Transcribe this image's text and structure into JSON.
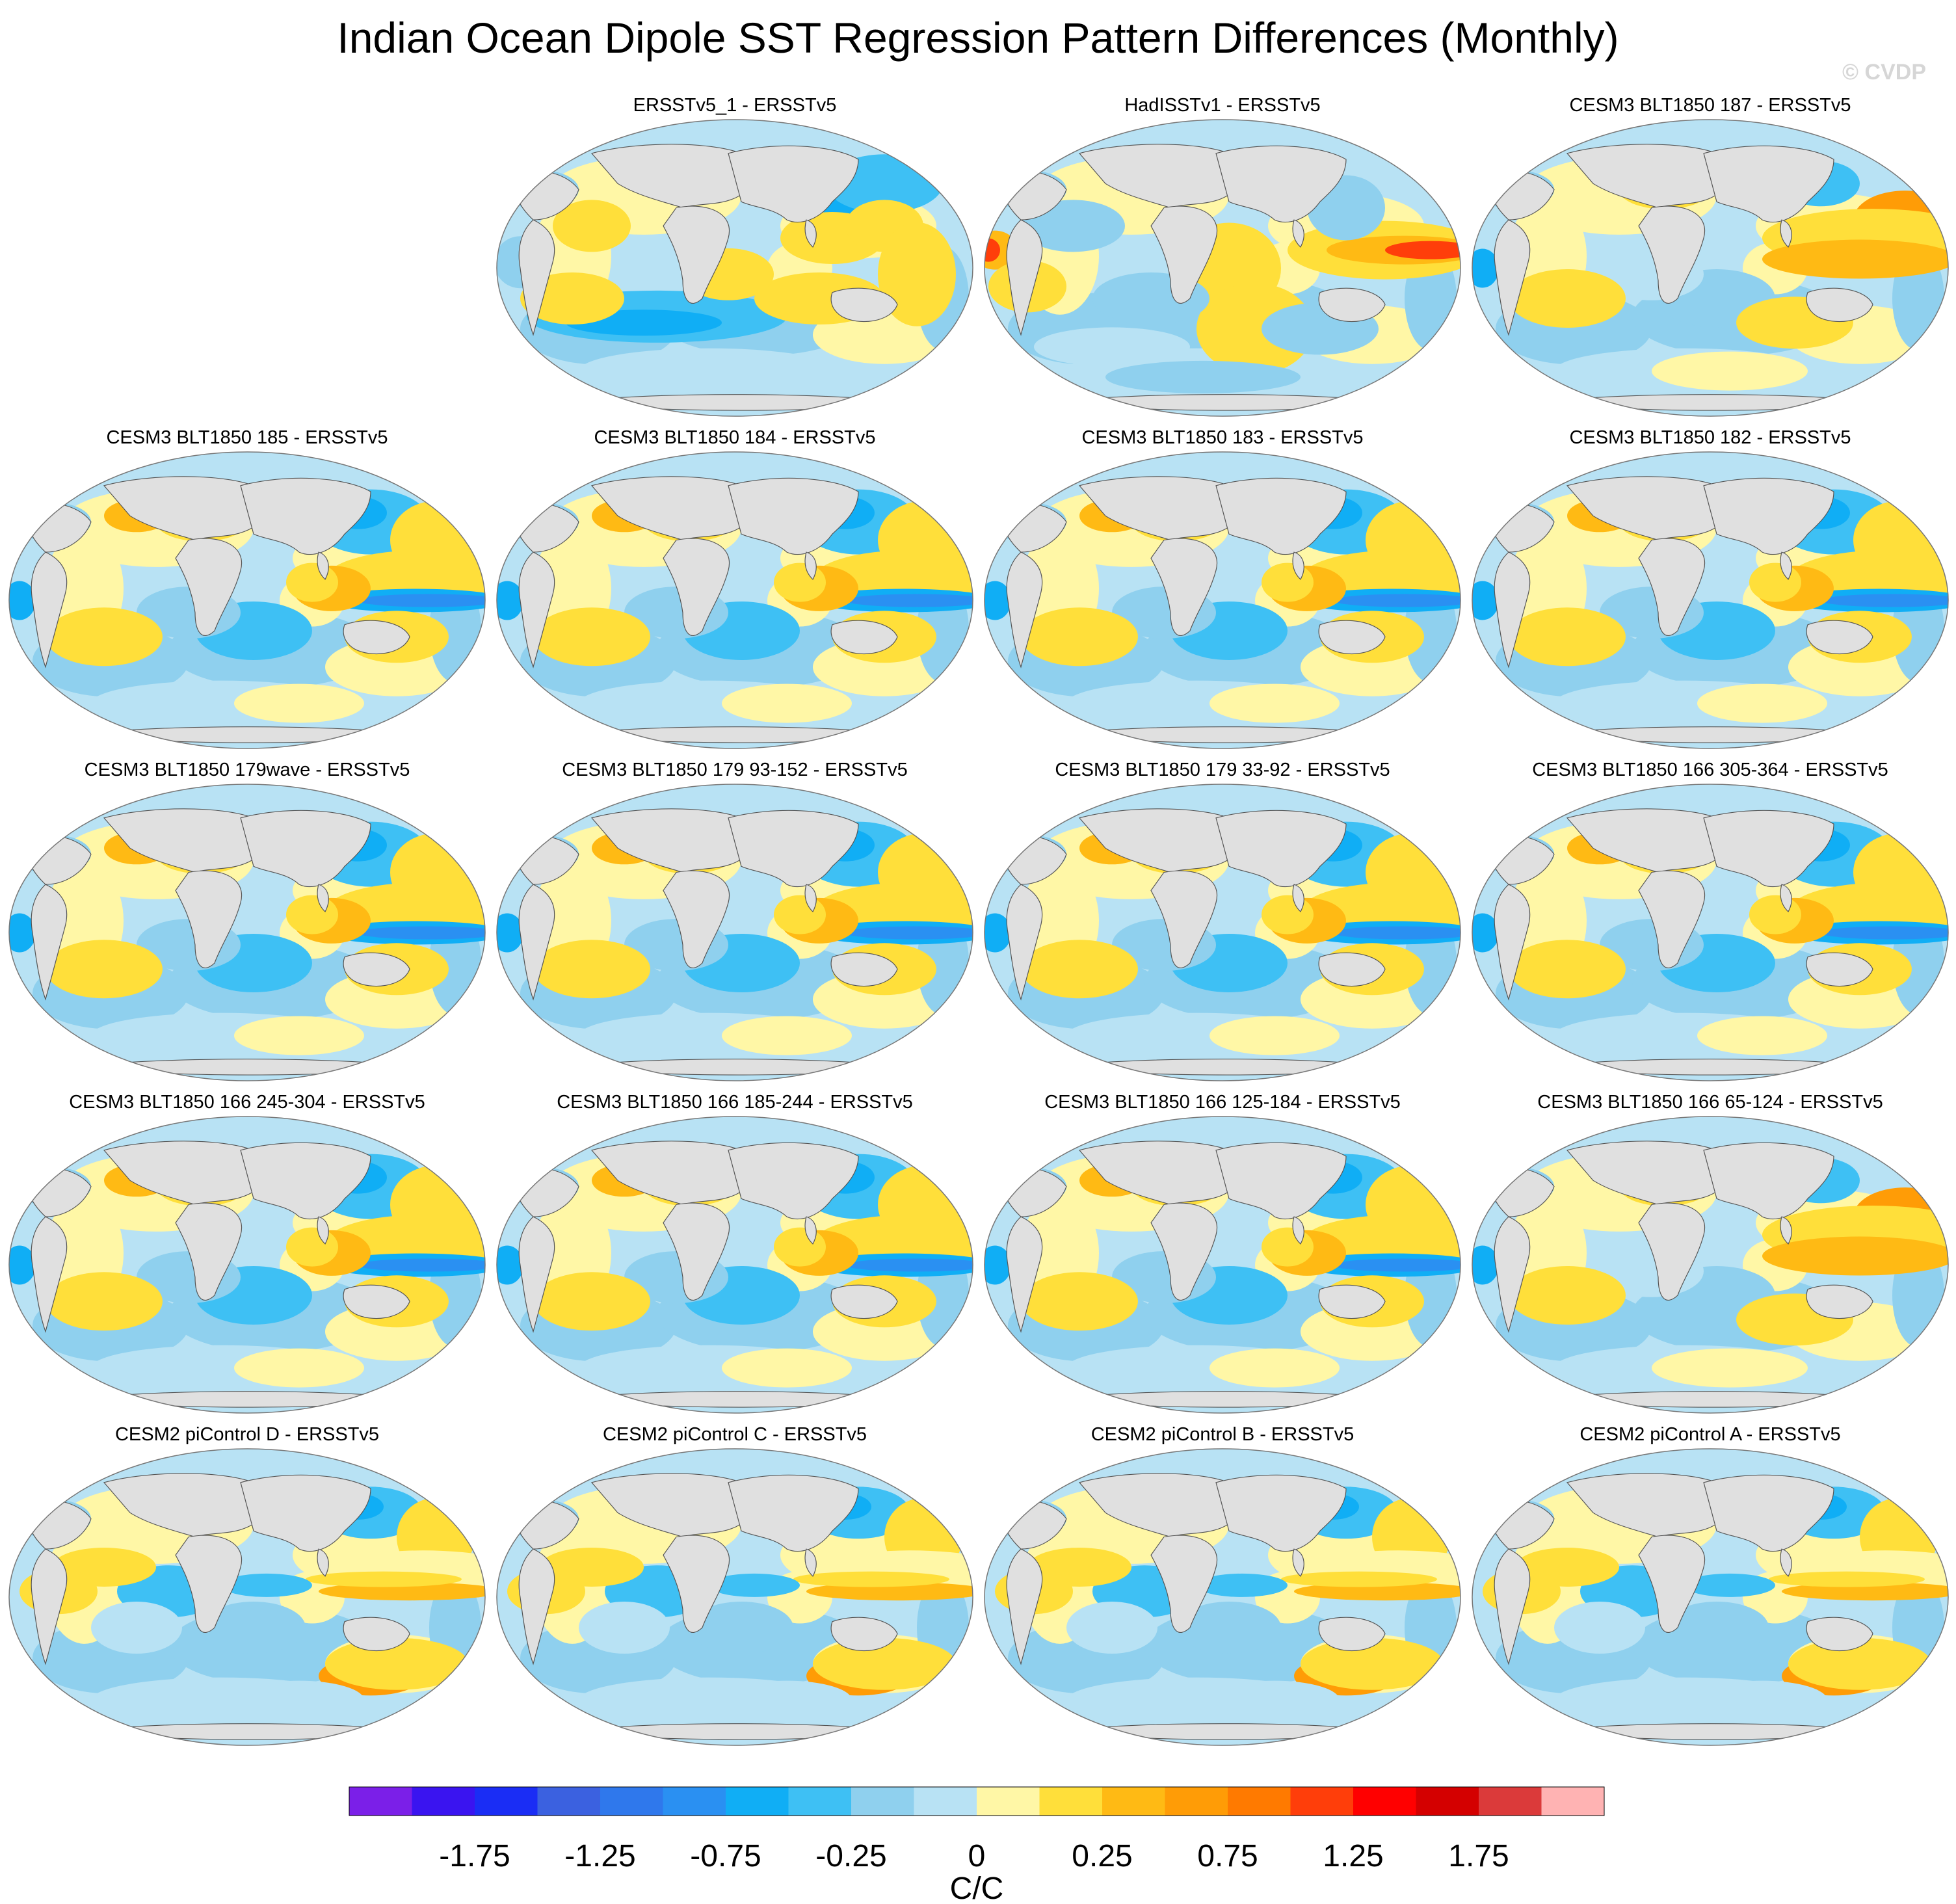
{
  "title": "Indian Ocean Dipole SST Regression Pattern Differences (Monthly)",
  "watermark": "© CVDP",
  "panels": [
    {
      "title": "ERSSTv5_1 - ERSSTv5",
      "pattern": "obs1"
    },
    {
      "title": "HadISSTv1 - ERSSTv5",
      "pattern": "had"
    },
    {
      "title": "CESM3 BLT1850 187 - ERSSTv5",
      "pattern": "warmwp"
    },
    {
      "title": "CESM3 BLT1850 185 - ERSSTv5",
      "pattern": "cold"
    },
    {
      "title": "CESM3 BLT1850 184 - ERSSTv5",
      "pattern": "cold"
    },
    {
      "title": "CESM3 BLT1850 183 - ERSSTv5",
      "pattern": "cold"
    },
    {
      "title": "CESM3 BLT1850 182 - ERSSTv5",
      "pattern": "cold"
    },
    {
      "title": "CESM3 BLT1850 179wave - ERSSTv5",
      "pattern": "cold"
    },
    {
      "title": "CESM3 BLT1850 179 93-152 - ERSSTv5",
      "pattern": "cold"
    },
    {
      "title": "CESM3 BLT1850 179 33-92 - ERSSTv5",
      "pattern": "cold"
    },
    {
      "title": "CESM3 BLT1850 166 305-364 - ERSSTv5",
      "pattern": "cold"
    },
    {
      "title": "CESM3 BLT1850 166 245-304 - ERSSTv5",
      "pattern": "cold"
    },
    {
      "title": "CESM3 BLT1850 166 185-244 - ERSSTv5",
      "pattern": "cold"
    },
    {
      "title": "CESM3 BLT1850 166 125-184 - ERSSTv5",
      "pattern": "cold"
    },
    {
      "title": "CESM3 BLT1850 166 65-124 - ERSSTv5",
      "pattern": "warmwp"
    },
    {
      "title": "CESM2 piControl D - ERSSTv5",
      "pattern": "cesm2"
    },
    {
      "title": "CESM2 piControl C - ERSSTv5",
      "pattern": "cesm2"
    },
    {
      "title": "CESM2 piControl B - ERSSTv5",
      "pattern": "cesm2"
    },
    {
      "title": "CESM2 piControl A - ERSSTv5",
      "pattern": "cesm2"
    }
  ],
  "colorbar": {
    "colors": [
      "#7b1fe8",
      "#3a14f0",
      "#1a2df5",
      "#3b61e0",
      "#2f78ec",
      "#2a90f2",
      "#10aef5",
      "#3ec0f4",
      "#8fd0ee",
      "#b8e2f4",
      "#fff7a6",
      "#ffdf3a",
      "#ffba14",
      "#ff9c06",
      "#ff7a00",
      "#ff3e0a",
      "#ff0000",
      "#d40000",
      "#db3a3a",
      "#ffb3b3"
    ],
    "labels": [
      "-1.75",
      "-1.25",
      "-0.75",
      "-0.25",
      "0",
      "0.25",
      "0.75",
      "1.25",
      "1.75"
    ],
    "units": "C/C"
  }
}
